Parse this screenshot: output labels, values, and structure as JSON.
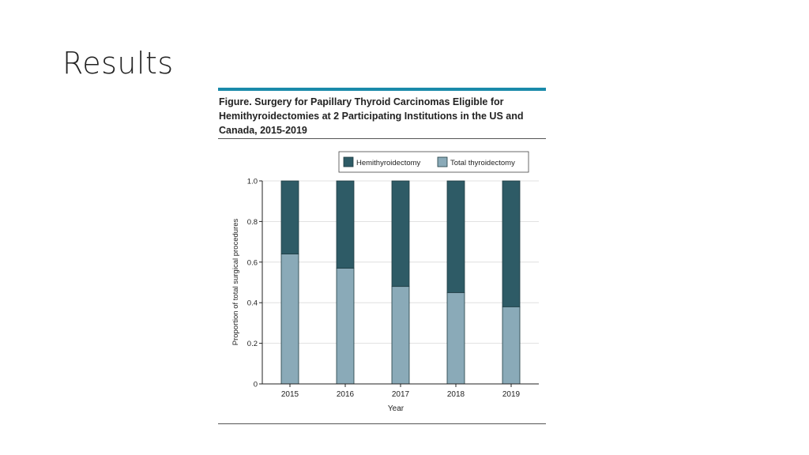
{
  "slide": {
    "title": "Results"
  },
  "figure": {
    "caption": "Figure. Surgery for Papillary Thyroid Carcinomas Eligible for Hemithyroidectomies at 2 Participating Institutions in the US and Canada, 2015-2019"
  },
  "colors": {
    "hemi": "#2e5b66",
    "total": "#8aaab8",
    "accent": "#1a8aaa"
  },
  "chart_data": {
    "type": "bar",
    "stacked": true,
    "categories": [
      "2015",
      "2016",
      "2017",
      "2018",
      "2019"
    ],
    "series": [
      {
        "name": "Total thyroidectomy",
        "values": [
          0.64,
          0.57,
          0.48,
          0.45,
          0.38
        ]
      },
      {
        "name": "Hemithyroidectomy",
        "values": [
          0.36,
          0.43,
          0.52,
          0.55,
          0.62
        ]
      }
    ],
    "legend": [
      "Hemithyroidectomy",
      "Total thyroidectomy"
    ],
    "xlabel": "Year",
    "ylabel": "Proportion of total surgical procedures",
    "ylim": [
      0,
      1.0
    ],
    "yticks": [
      "0",
      "0.2",
      "0.4",
      "0.6",
      "0.8",
      "1.0"
    ],
    "grid": true,
    "legend_position": "top-right"
  }
}
